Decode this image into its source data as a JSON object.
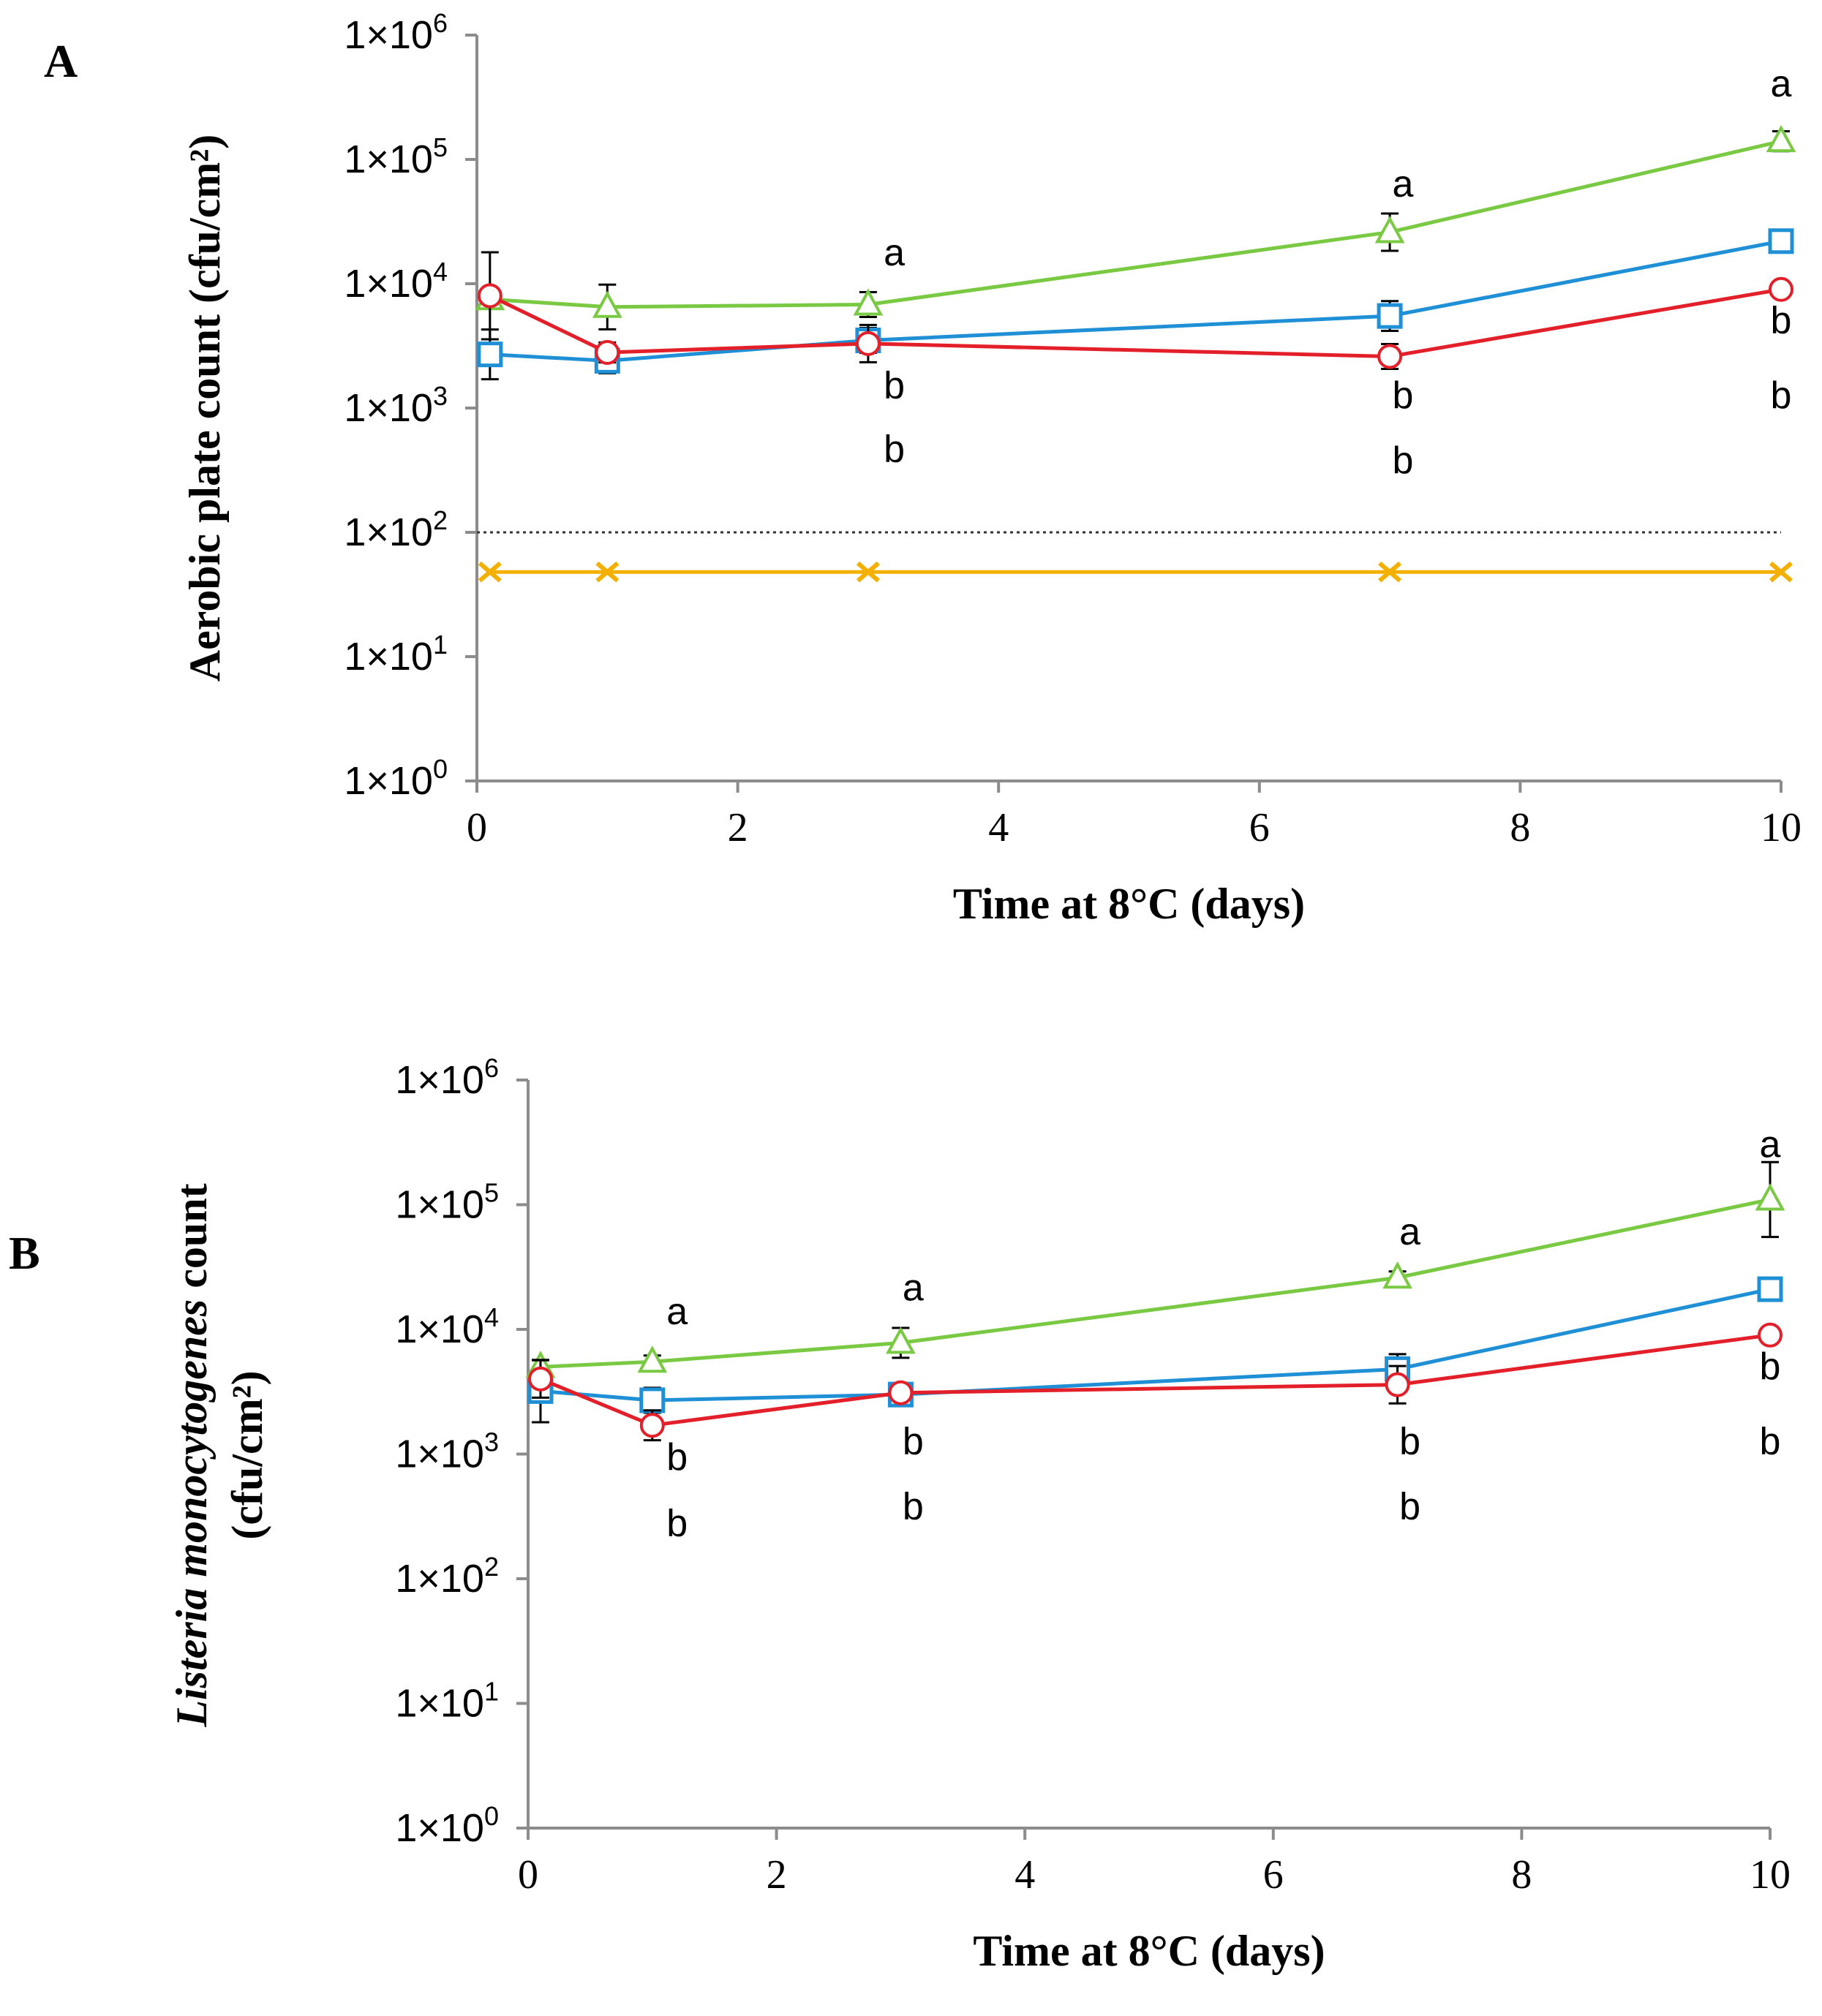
{
  "chart_data": [
    {
      "panel": "A",
      "type": "line",
      "yscale": "log",
      "title": "",
      "xlabel": "Time at 8°C (days)",
      "ylabel": "Aerobic plate count (cfu/cm²)",
      "ylim": [
        1,
        1000000
      ],
      "xlim": [
        0,
        10
      ],
      "x_ticks": [
        "0",
        "2",
        "4",
        "6",
        "8",
        "10"
      ],
      "y_ticks": [
        {
          "base": "1×10",
          "exp": "0"
        },
        {
          "base": "1×10",
          "exp": "1"
        },
        {
          "base": "1×10",
          "exp": "2"
        },
        {
          "base": "1×10",
          "exp": "3"
        },
        {
          "base": "1×10",
          "exp": "4"
        },
        {
          "base": "1×10",
          "exp": "5"
        },
        {
          "base": "1×10",
          "exp": "6"
        }
      ],
      "detection_limit": 100,
      "series": [
        {
          "name": "green-triangle",
          "color": "#7ac943",
          "marker": "triangle",
          "x": [
            0.1,
            1,
            3,
            7,
            10
          ],
          "y": [
            7500,
            6500,
            6800,
            26000,
            140000
          ],
          "err": [
            0,
            0.18,
            0.1,
            0.15,
            0.08
          ]
        },
        {
          "name": "blue-square",
          "color": "#1f8fd6",
          "marker": "square",
          "x": [
            0.1,
            1,
            3,
            7,
            10
          ],
          "y": [
            2700,
            2400,
            3500,
            5500,
            22000
          ],
          "err": [
            0.2,
            0.1,
            0.1,
            0.12,
            0.05
          ]
        },
        {
          "name": "red-circle",
          "color": "#e3202a",
          "marker": "circle",
          "x": [
            0.1,
            1,
            3,
            7,
            10
          ],
          "y": [
            8000,
            2800,
            3300,
            2600,
            9000
          ],
          "err": [
            0.35,
            0.08,
            0.15,
            0.1,
            0.05
          ]
        },
        {
          "name": "orange-x",
          "color": "#f4b000",
          "marker": "x",
          "x": [
            0.1,
            1,
            3,
            7,
            10
          ],
          "y": [
            48,
            48,
            48,
            48,
            48
          ],
          "err": [
            0,
            0,
            0,
            0,
            0
          ]
        }
      ],
      "annotations": [
        {
          "text": "a",
          "x": 3.2,
          "y": 14000
        },
        {
          "text": "b",
          "x": 3.2,
          "y": 1200
        },
        {
          "text": "b",
          "x": 3.2,
          "y": 370
        },
        {
          "text": "a",
          "x": 7.1,
          "y": 50000
        },
        {
          "text": "b",
          "x": 7.1,
          "y": 1000
        },
        {
          "text": "b",
          "x": 7.1,
          "y": 300
        },
        {
          "text": "a",
          "x": 10,
          "y": 320000
        },
        {
          "text": "b",
          "x": 10,
          "y": 4000
        },
        {
          "text": "b",
          "x": 10,
          "y": 1000
        }
      ]
    },
    {
      "panel": "B",
      "type": "line",
      "yscale": "log",
      "title": "",
      "xlabel": "Time at 8°C (days)",
      "ylabel_italic": "Listeria monocytogenes",
      "ylabel_rest": " count",
      "ylabel_line2": "(cfu/cm²)",
      "ylim": [
        1,
        1000000
      ],
      "xlim": [
        0,
        10
      ],
      "x_ticks": [
        "0",
        "2",
        "4",
        "6",
        "8",
        "10"
      ],
      "y_ticks": [
        {
          "base": "1×10",
          "exp": "0"
        },
        {
          "base": "1×10",
          "exp": "1"
        },
        {
          "base": "1×10",
          "exp": "2"
        },
        {
          "base": "1×10",
          "exp": "3"
        },
        {
          "base": "1×10",
          "exp": "4"
        },
        {
          "base": "1×10",
          "exp": "5"
        },
        {
          "base": "1×10",
          "exp": "6"
        }
      ],
      "series": [
        {
          "name": "green-triangle",
          "color": "#7ac943",
          "marker": "triangle",
          "x": [
            0.1,
            1,
            3,
            7,
            10
          ],
          "y": [
            5000,
            5500,
            7800,
            26000,
            110000
          ],
          "err": [
            0,
            0.05,
            0.12,
            0.05,
            0.3
          ]
        },
        {
          "name": "blue-square",
          "color": "#1f8fd6",
          "marker": "square",
          "x": [
            0.1,
            1,
            3,
            7,
            10
          ],
          "y": [
            3200,
            2700,
            3000,
            4800,
            21000
          ],
          "err": [
            0.25,
            0.1,
            0.05,
            0.12,
            0.05
          ]
        },
        {
          "name": "red-circle",
          "color": "#e3202a",
          "marker": "circle",
          "x": [
            0.1,
            1,
            3,
            7,
            10
          ],
          "y": [
            4000,
            1700,
            3100,
            3600,
            9000
          ],
          "err": [
            0.15,
            0.12,
            0.05,
            0.15,
            0.05
          ]
        }
      ],
      "annotations": [
        {
          "text": "a",
          "x": 1.2,
          "y": 11000
        },
        {
          "text": "b",
          "x": 1.2,
          "y": 750
        },
        {
          "text": "b",
          "x": 1.2,
          "y": 220
        },
        {
          "text": "a",
          "x": 3.1,
          "y": 17000
        },
        {
          "text": "b",
          "x": 3.1,
          "y": 1000
        },
        {
          "text": "b",
          "x": 3.1,
          "y": 300
        },
        {
          "text": "a",
          "x": 7.1,
          "y": 48000
        },
        {
          "text": "b",
          "x": 7.1,
          "y": 1000
        },
        {
          "text": "b",
          "x": 7.1,
          "y": 300
        },
        {
          "text": "a",
          "x": 10,
          "y": 240000
        },
        {
          "text": "b",
          "x": 10,
          "y": 4000
        },
        {
          "text": "b",
          "x": 10,
          "y": 1000
        }
      ]
    }
  ],
  "panel_labels": [
    "A",
    "B"
  ]
}
